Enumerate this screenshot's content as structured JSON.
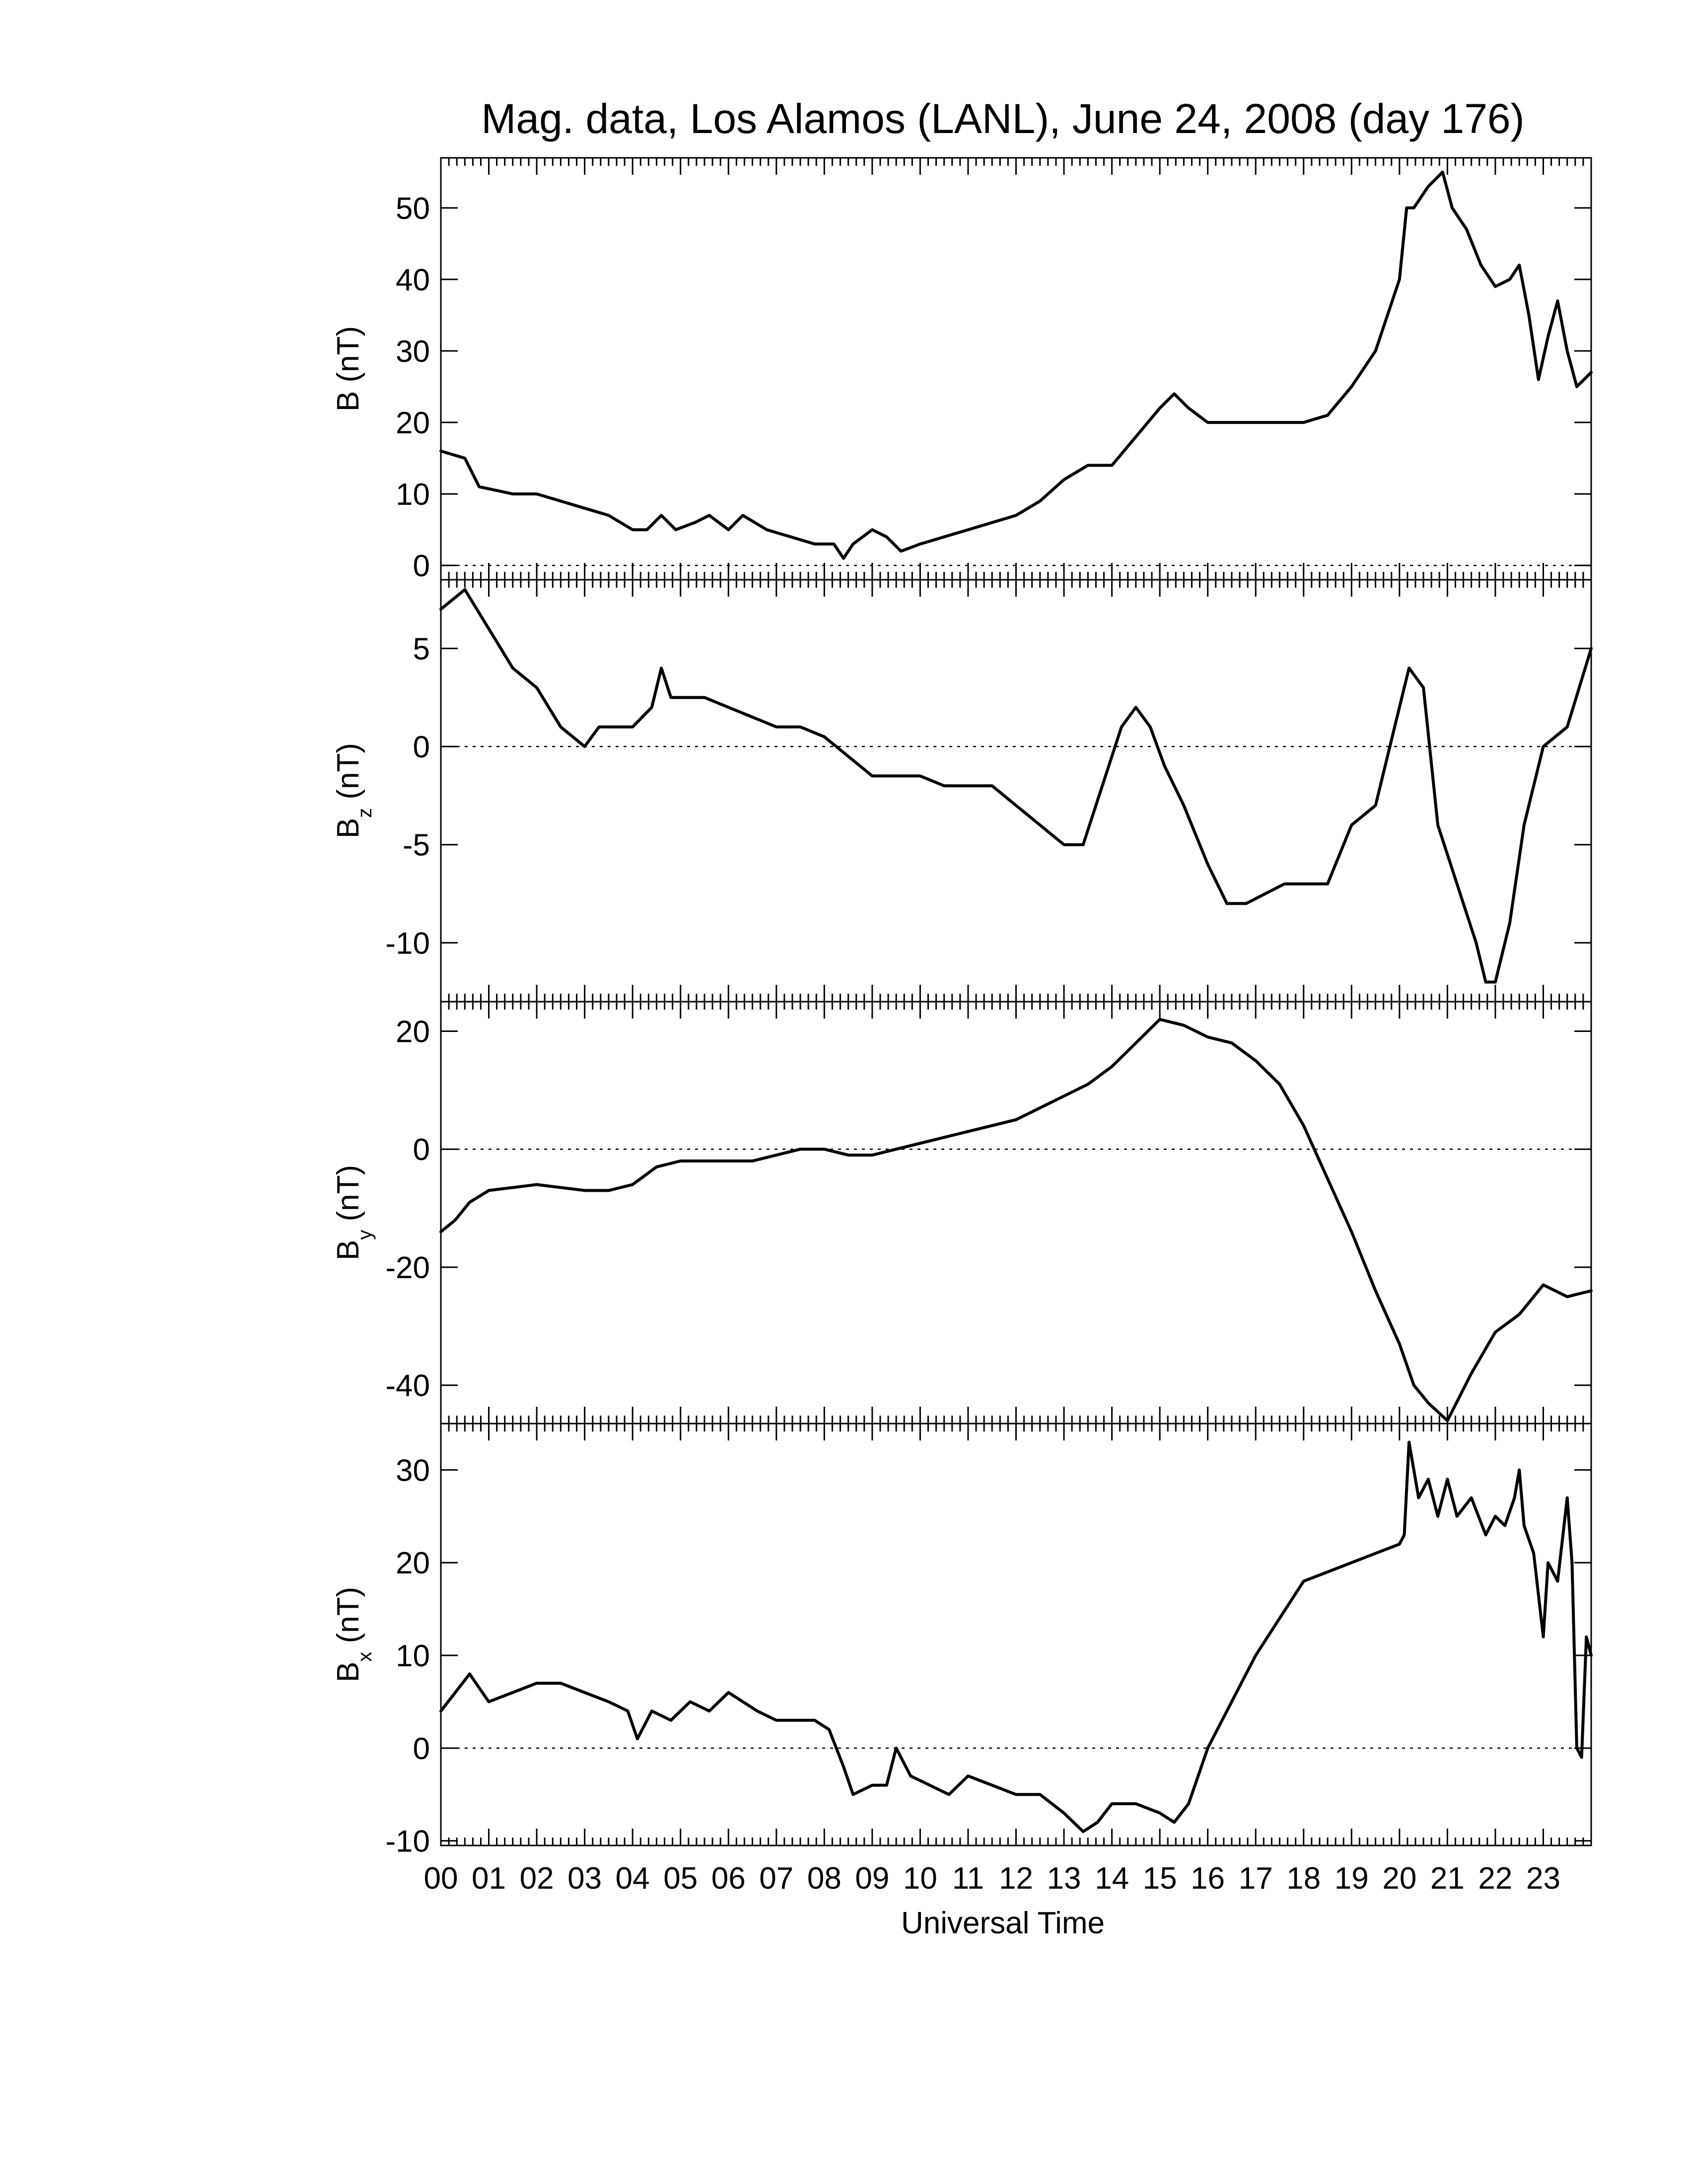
{
  "chart_data": {
    "type": "line",
    "title": "Mag. data, Los Alamos (LANL), June 24, 2008 (day 176)",
    "xlabel": "Universal Time",
    "x_range": [
      0,
      24
    ],
    "x_ticks": [
      "00",
      "01",
      "02",
      "03",
      "04",
      "05",
      "06",
      "07",
      "08",
      "09",
      "10",
      "11",
      "12",
      "13",
      "14",
      "15",
      "16",
      "17",
      "18",
      "19",
      "20",
      "21",
      "22",
      "23"
    ],
    "panels": [
      {
        "id": "B",
        "ylabel": "B (nT)",
        "ylabel_main": "B (nT)",
        "ylabel_sub": "",
        "ylabel_tail": "",
        "ylim": [
          -2,
          57
        ],
        "yticks": [
          0,
          10,
          20,
          30,
          40,
          50
        ],
        "ytick_labels": [
          "0",
          "10",
          "20",
          "30",
          "40",
          "50"
        ],
        "zero_line": true,
        "series": {
          "x": [
            0,
            0.5,
            0.8,
            1.5,
            2,
            2.5,
            3,
            3.5,
            4,
            4.3,
            4.6,
            4.9,
            5.3,
            5.6,
            6,
            6.3,
            6.8,
            7.3,
            7.8,
            8.2,
            8.4,
            8.6,
            9.0,
            9.3,
            9.6,
            10,
            10.5,
            11,
            11.5,
            12,
            12.5,
            13,
            13.5,
            14,
            14.5,
            15,
            15.3,
            15.6,
            16,
            16.5,
            17,
            17.5,
            18,
            18.5,
            19,
            19.5,
            20,
            20.15,
            20.3,
            20.6,
            20.9,
            21.1,
            21.4,
            21.7,
            22.0,
            22.3,
            22.5,
            22.7,
            22.9,
            23.1,
            23.3,
            23.5,
            23.7,
            23.85,
            24
          ],
          "y": [
            16,
            15,
            11,
            10,
            10,
            9,
            8,
            7,
            5,
            5,
            7,
            5,
            6,
            7,
            5,
            7,
            5,
            4,
            3,
            3,
            1,
            3,
            5,
            4,
            2,
            3,
            4,
            5,
            6,
            7,
            9,
            12,
            14,
            14,
            18,
            22,
            24,
            22,
            20,
            20,
            20,
            20,
            20,
            21,
            25,
            30,
            40,
            50,
            50,
            53,
            55,
            50,
            47,
            42,
            39,
            40,
            42,
            35,
            26,
            32,
            37,
            30,
            25,
            26,
            27
          ]
        }
      },
      {
        "id": "Bz",
        "ylabel": "Bz (nT)",
        "ylabel_main": "B",
        "ylabel_sub": "z",
        "ylabel_tail": "(nT)",
        "ylim": [
          -13,
          8.5
        ],
        "yticks": [
          -10,
          -5,
          0,
          5
        ],
        "ytick_labels": [
          "-10",
          "-5",
          "0",
          "5"
        ],
        "zero_line": true,
        "series": {
          "x": [
            0,
            0.5,
            1,
            1.5,
            2,
            2.5,
            3,
            3.3,
            3.6,
            4,
            4.4,
            4.6,
            4.8,
            5.5,
            6,
            6.5,
            7,
            7.5,
            8,
            8.5,
            9,
            9.5,
            10,
            10.5,
            11,
            11.5,
            12,
            12.5,
            13,
            13.4,
            13.8,
            14.2,
            14.5,
            14.8,
            15.1,
            15.5,
            16,
            16.4,
            16.8,
            17.2,
            17.6,
            18,
            18.5,
            19,
            19.5,
            19.8,
            20.2,
            20.5,
            20.8,
            21.2,
            21.6,
            21.8,
            22.0,
            22.3,
            22.6,
            23,
            23.5,
            24
          ],
          "y": [
            7,
            8,
            6,
            4,
            3,
            1,
            0,
            1,
            1,
            1,
            2,
            4,
            2.5,
            2.5,
            2,
            1.5,
            1,
            1,
            0.5,
            -0.5,
            -1.5,
            -1.5,
            -1.5,
            -2,
            -2,
            -2,
            -3,
            -4,
            -5,
            -5,
            -2,
            1,
            2,
            1,
            -1,
            -3,
            -6,
            -8,
            -8,
            -7.5,
            -7,
            -7,
            -7,
            -4,
            -3,
            0,
            4,
            3,
            -4,
            -7,
            -10,
            -12,
            -12,
            -9,
            -4,
            0,
            1,
            5
          ]
        }
      },
      {
        "id": "By",
        "ylabel": "By (nT)",
        "ylabel_main": "B",
        "ylabel_sub": "y",
        "ylabel_tail": "(nT)",
        "ylim": [
          -46.5,
          25
        ],
        "yticks": [
          -40,
          -20,
          0,
          20
        ],
        "ytick_labels": [
          "-40",
          "-20",
          "0",
          "20"
        ],
        "zero_line": true,
        "series": {
          "x": [
            0,
            0.3,
            0.6,
            1,
            2,
            3,
            3.5,
            4,
            4.5,
            5,
            5.5,
            6,
            6.5,
            7,
            7.5,
            8,
            8.5,
            9,
            9.5,
            10,
            10.5,
            11,
            11.5,
            12,
            12.5,
            13,
            13.5,
            14,
            14.5,
            15,
            15.5,
            16,
            16.5,
            17,
            17.5,
            18,
            18.5,
            19,
            19.5,
            20,
            20.3,
            20.6,
            21,
            21.5,
            22,
            22.5,
            23,
            23.5,
            24
          ],
          "y": [
            -14,
            -12,
            -9,
            -7,
            -6,
            -7,
            -7,
            -6,
            -3,
            -2,
            -2,
            -2,
            -2,
            -1,
            0,
            0,
            -1,
            -1,
            0,
            1,
            2,
            3,
            4,
            5,
            7,
            9,
            11,
            14,
            18,
            22,
            21,
            19,
            18,
            15,
            11,
            4,
            -5,
            -14,
            -24,
            -33,
            -40,
            -43,
            -46,
            -38,
            -31,
            -28,
            -23,
            -25,
            -24
          ]
        }
      },
      {
        "id": "Bx",
        "ylabel": "Bx (nT)",
        "ylabel_main": "B",
        "ylabel_sub": "x",
        "ylabel_tail": "(nT)",
        "ylim": [
          -10.5,
          35
        ],
        "yticks": [
          -10,
          0,
          10,
          20,
          30
        ],
        "ytick_labels": [
          "-10",
          "0",
          "10",
          "20",
          "30"
        ],
        "zero_line": true,
        "series": {
          "x": [
            0,
            0.3,
            0.6,
            1,
            1.5,
            2,
            2.5,
            3,
            3.5,
            3.9,
            4.1,
            4.4,
            4.8,
            5.2,
            5.6,
            6,
            6.3,
            6.6,
            7,
            7.5,
            7.8,
            8.1,
            8.4,
            8.6,
            9,
            9.3,
            9.5,
            9.8,
            10.2,
            10.6,
            11,
            11.5,
            12,
            12.5,
            13,
            13.4,
            13.7,
            14,
            14.5,
            15,
            15.3,
            15.6,
            16,
            16.5,
            17,
            17.5,
            18,
            18.5,
            19,
            19.5,
            20,
            20.1,
            20.2,
            20.4,
            20.6,
            20.8,
            21,
            21.2,
            21.5,
            21.8,
            22,
            22.2,
            22.4,
            22.5,
            22.6,
            22.8,
            23.0,
            23.1,
            23.3,
            23.5,
            23.6,
            23.7,
            23.8,
            23.9,
            24
          ],
          "y": [
            4,
            6,
            8,
            5,
            6,
            7,
            7,
            6,
            5,
            4,
            1,
            4,
            3,
            5,
            4,
            6,
            5,
            4,
            3,
            3,
            3,
            2,
            -2,
            -5,
            -4,
            -4,
            0,
            -3,
            -4,
            -5,
            -3,
            -4,
            -5,
            -5,
            -7,
            -9,
            -8,
            -6,
            -6,
            -7,
            -8,
            -6,
            0,
            5,
            10,
            14,
            18,
            19,
            20,
            21,
            22,
            23,
            33,
            27,
            29,
            25,
            29,
            25,
            27,
            23,
            25,
            24,
            27,
            30,
            24,
            21,
            12,
            20,
            18,
            27,
            20,
            0,
            -1,
            12,
            10
          ]
        }
      }
    ]
  }
}
